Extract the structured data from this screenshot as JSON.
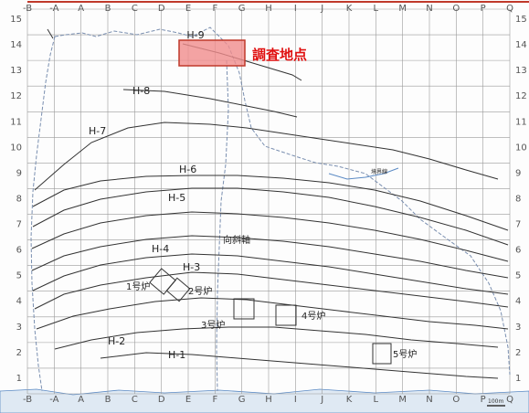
{
  "colors": {
    "grid": "#9a9a9a",
    "frame_top": "#c0392b",
    "contour": "#333333",
    "dashed_boundary": "#7a8fb0",
    "water_edge": "#5b8ac4",
    "water_fill": "#dfe9f3",
    "survey_fill": "#f08c8c",
    "survey_stroke": "#c0392b",
    "callout": "#e01010"
  },
  "grid": {
    "columns": [
      "-B",
      "-A",
      "A",
      "B",
      "C",
      "D",
      "E",
      "F",
      "G",
      "H",
      "I",
      "J",
      "K",
      "L",
      "M",
      "N",
      "O",
      "P",
      "Q"
    ],
    "rows": [
      "15",
      "14",
      "13",
      "12",
      "11",
      "10",
      "9",
      "8",
      "7",
      "6",
      "5",
      "4",
      "3",
      "2",
      "1"
    ]
  },
  "survey_point": {
    "label": "調査地点",
    "line_label": "H-9"
  },
  "survey_lines": [
    {
      "id": "H-1",
      "label": "H-1"
    },
    {
      "id": "H-2",
      "label": "H-2"
    },
    {
      "id": "H-3",
      "label": "H-3"
    },
    {
      "id": "H-4",
      "label": "H-4"
    },
    {
      "id": "H-5",
      "label": "H-5"
    },
    {
      "id": "H-6",
      "label": "H-6"
    },
    {
      "id": "H-7",
      "label": "H-7"
    },
    {
      "id": "H-8",
      "label": "H-8"
    }
  ],
  "kilns": [
    {
      "id": "kiln-1",
      "label": "1号炉"
    },
    {
      "id": "kiln-2",
      "label": "2号炉"
    },
    {
      "id": "kiln-3",
      "label": "3号炉"
    },
    {
      "id": "kiln-4",
      "label": "4号炉"
    },
    {
      "id": "kiln-5",
      "label": "5号炉"
    }
  ],
  "features": {
    "slope_label": "向斜軸",
    "small_label": "境界線"
  },
  "scale_bar": {
    "label": "100m"
  }
}
